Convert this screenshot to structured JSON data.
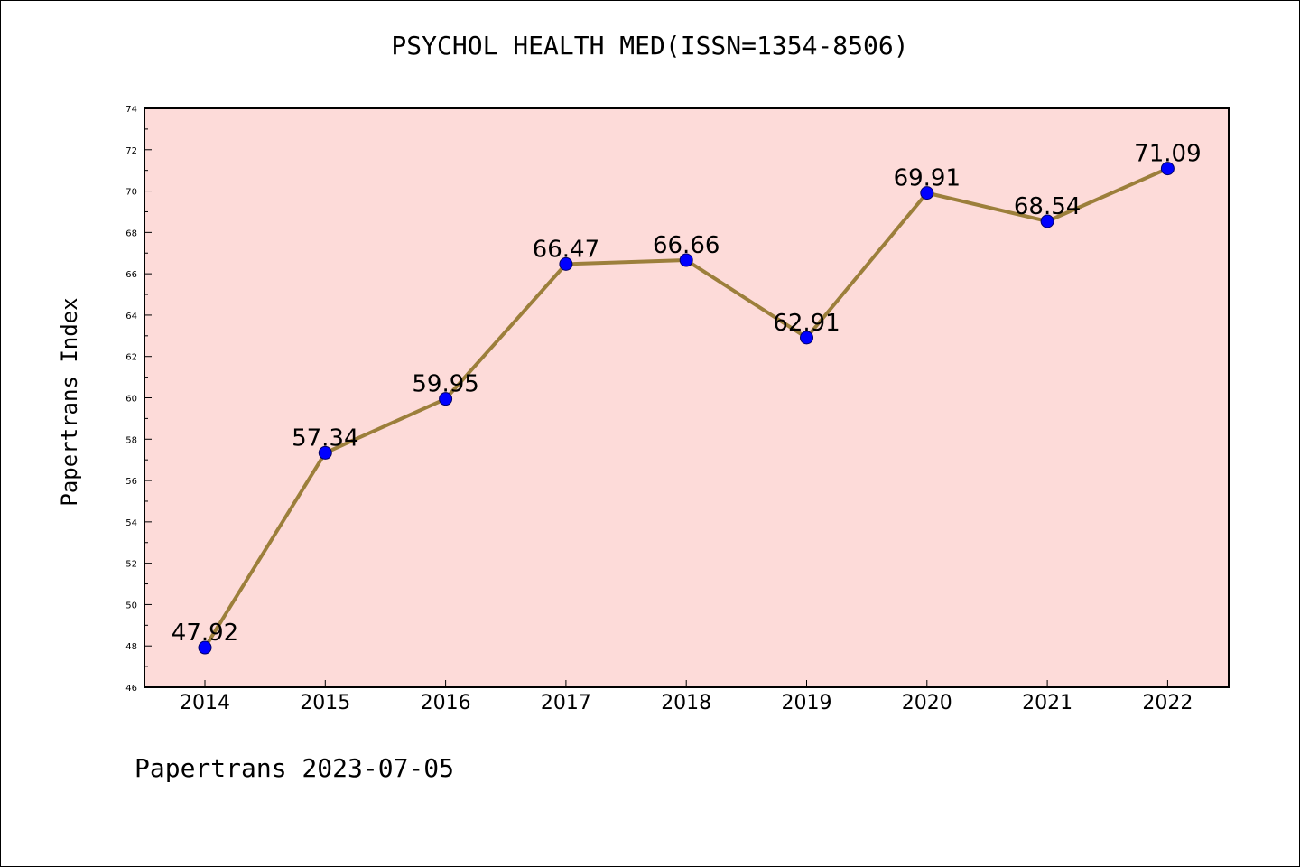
{
  "title": "PSYCHOL HEALTH MED(ISSN=1354-8506)",
  "ylabel": "Papertrans Index",
  "footer": "Papertrans 2023-07-05",
  "colors": {
    "plot_background": "#fddbd9",
    "line": "#9c7f3b",
    "marker": "#0000ff",
    "axis": "#000000"
  },
  "chart_data": {
    "type": "line",
    "title": "PSYCHOL HEALTH MED(ISSN=1354-8506)",
    "xlabel": "",
    "ylabel": "Papertrans Index",
    "categories": [
      "2014",
      "2015",
      "2016",
      "2017",
      "2018",
      "2019",
      "2020",
      "2021",
      "2022"
    ],
    "values": [
      47.92,
      57.34,
      59.95,
      66.47,
      66.66,
      62.91,
      69.91,
      68.54,
      71.09
    ],
    "value_labels": [
      "47.92",
      "57.34",
      "59.95",
      "66.47",
      "66.66",
      "62.91",
      "69.91",
      "68.54",
      "71.09"
    ],
    "ylim": [
      46,
      74
    ],
    "yticks": [
      "46",
      "48",
      "50",
      "52",
      "54",
      "56",
      "58",
      "60",
      "62",
      "64",
      "66",
      "68",
      "70",
      "72",
      "74"
    ],
    "grid": false,
    "legend": "none"
  }
}
